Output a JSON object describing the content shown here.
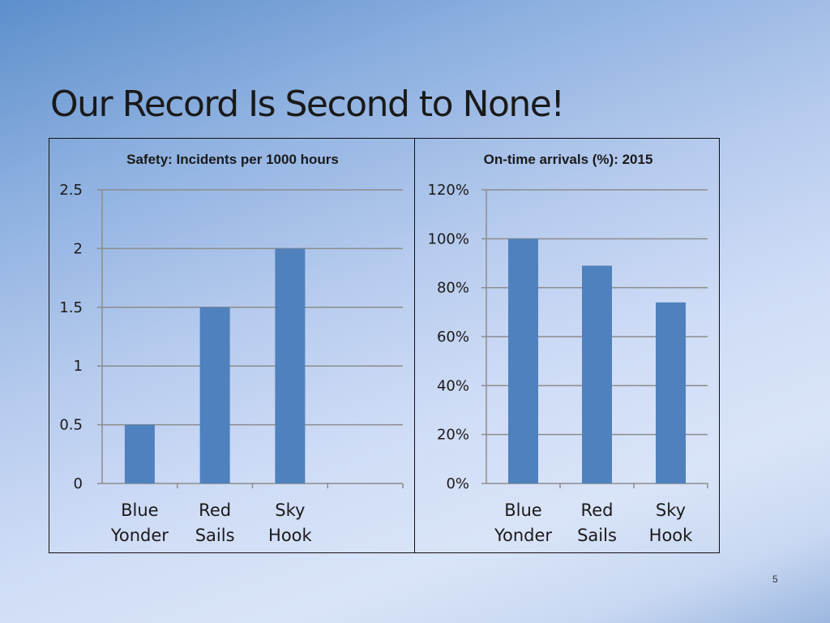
{
  "slide": {
    "title": "Our Record Is Second to None!",
    "page_number": "5"
  },
  "colors": {
    "bar": "#4f81bd",
    "gridline": "#8c8c8c",
    "text": "#1a1a1a"
  },
  "chart_data": [
    {
      "type": "bar",
      "title": "Safety: Incidents per 1000 hours",
      "categories": [
        [
          "Blue",
          "Yonder"
        ],
        [
          "Red",
          "Sails"
        ],
        [
          "Sky",
          "Hook"
        ]
      ],
      "values": [
        0.5,
        1.5,
        2
      ],
      "ylim": [
        0,
        2.5
      ],
      "yticks": [
        0,
        0.5,
        1,
        1.5,
        2,
        2.5
      ],
      "ytick_labels": [
        "0",
        "0.5",
        "1",
        "1.5",
        "2",
        "2.5"
      ],
      "xlabel": "",
      "ylabel": "",
      "grid": true,
      "legend": "none"
    },
    {
      "type": "bar",
      "title": "On-time arrivals (%): 2015",
      "categories": [
        [
          "Blue",
          "Yonder"
        ],
        [
          "Red",
          "Sails"
        ],
        [
          "Sky",
          "Hook"
        ]
      ],
      "values": [
        100,
        89,
        74
      ],
      "ylim": [
        0,
        120
      ],
      "yticks": [
        0,
        20,
        40,
        60,
        80,
        100,
        120
      ],
      "ytick_labels": [
        "0%",
        "20%",
        "40%",
        "60%",
        "80%",
        "100%",
        "120%"
      ],
      "xlabel": "",
      "ylabel": "",
      "grid": true,
      "legend": "none"
    }
  ]
}
